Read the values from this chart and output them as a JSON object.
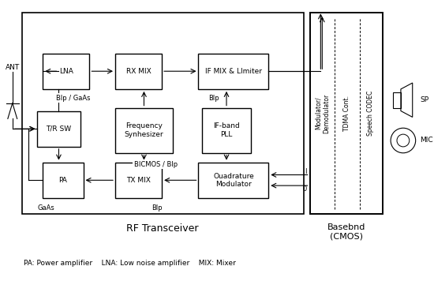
{
  "background_color": "#ffffff",
  "figsize": [
    5.5,
    3.56
  ],
  "dpi": 100,
  "rf_label": "RF Transceiver",
  "footnote": "PA: Power amplifier    LNA: Low noise amplifier    MIX: Mixer",
  "baseband_label": "Basebnd\n(CMOS)",
  "ant_label": "ANT",
  "sp_label": "SP",
  "mic_label": "MIC"
}
